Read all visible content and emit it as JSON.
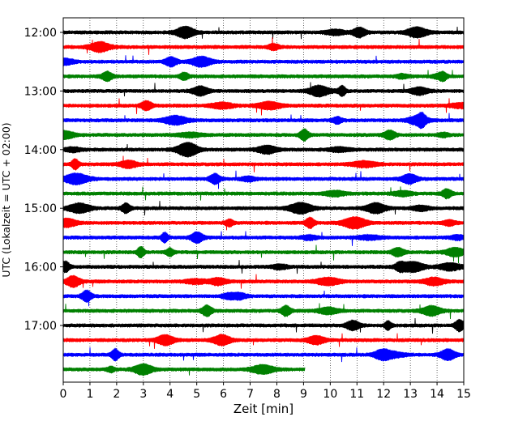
{
  "chart_data": {
    "type": "line",
    "title": "",
    "xlabel": "Zeit  [min]",
    "ylabel": "UTC (Lokalzeit = UTC + 02:00)",
    "xlim": [
      0,
      15
    ],
    "xticks": [
      "0",
      "1",
      "2",
      "3",
      "4",
      "5",
      "6",
      "7",
      "8",
      "9",
      "10",
      "11",
      "12",
      "13",
      "14",
      "15"
    ],
    "ytick_labels": [
      "12:00",
      "13:00",
      "14:00",
      "15:00",
      "16:00",
      "17:00"
    ],
    "minutes_per_trace": 15,
    "grid": "vertical dotted at each minute",
    "colors": [
      "#000000",
      "#ff0000",
      "#0000ff",
      "#008000"
    ],
    "traces": [
      {
        "start": "12:00",
        "end_min": 15
      },
      {
        "start": "12:15",
        "end_min": 15
      },
      {
        "start": "12:30",
        "end_min": 15
      },
      {
        "start": "12:45",
        "end_min": 15
      },
      {
        "start": "13:00",
        "end_min": 15
      },
      {
        "start": "13:15",
        "end_min": 15
      },
      {
        "start": "13:30",
        "end_min": 15
      },
      {
        "start": "13:45",
        "end_min": 15
      },
      {
        "start": "14:00",
        "end_min": 15
      },
      {
        "start": "14:15",
        "end_min": 15
      },
      {
        "start": "14:30",
        "end_min": 15
      },
      {
        "start": "14:45",
        "end_min": 15
      },
      {
        "start": "15:00",
        "end_min": 15
      },
      {
        "start": "15:15",
        "end_min": 15
      },
      {
        "start": "15:30",
        "end_min": 15
      },
      {
        "start": "15:45",
        "end_min": 15
      },
      {
        "start": "16:00",
        "end_min": 15
      },
      {
        "start": "16:15",
        "end_min": 15
      },
      {
        "start": "16:30",
        "end_min": 15
      },
      {
        "start": "16:45",
        "end_min": 15
      },
      {
        "start": "17:00",
        "end_min": 15
      },
      {
        "start": "17:15",
        "end_min": 15
      },
      {
        "start": "17:30",
        "end_min": 15
      },
      {
        "start": "17:45",
        "end_min": 9.05
      }
    ]
  }
}
